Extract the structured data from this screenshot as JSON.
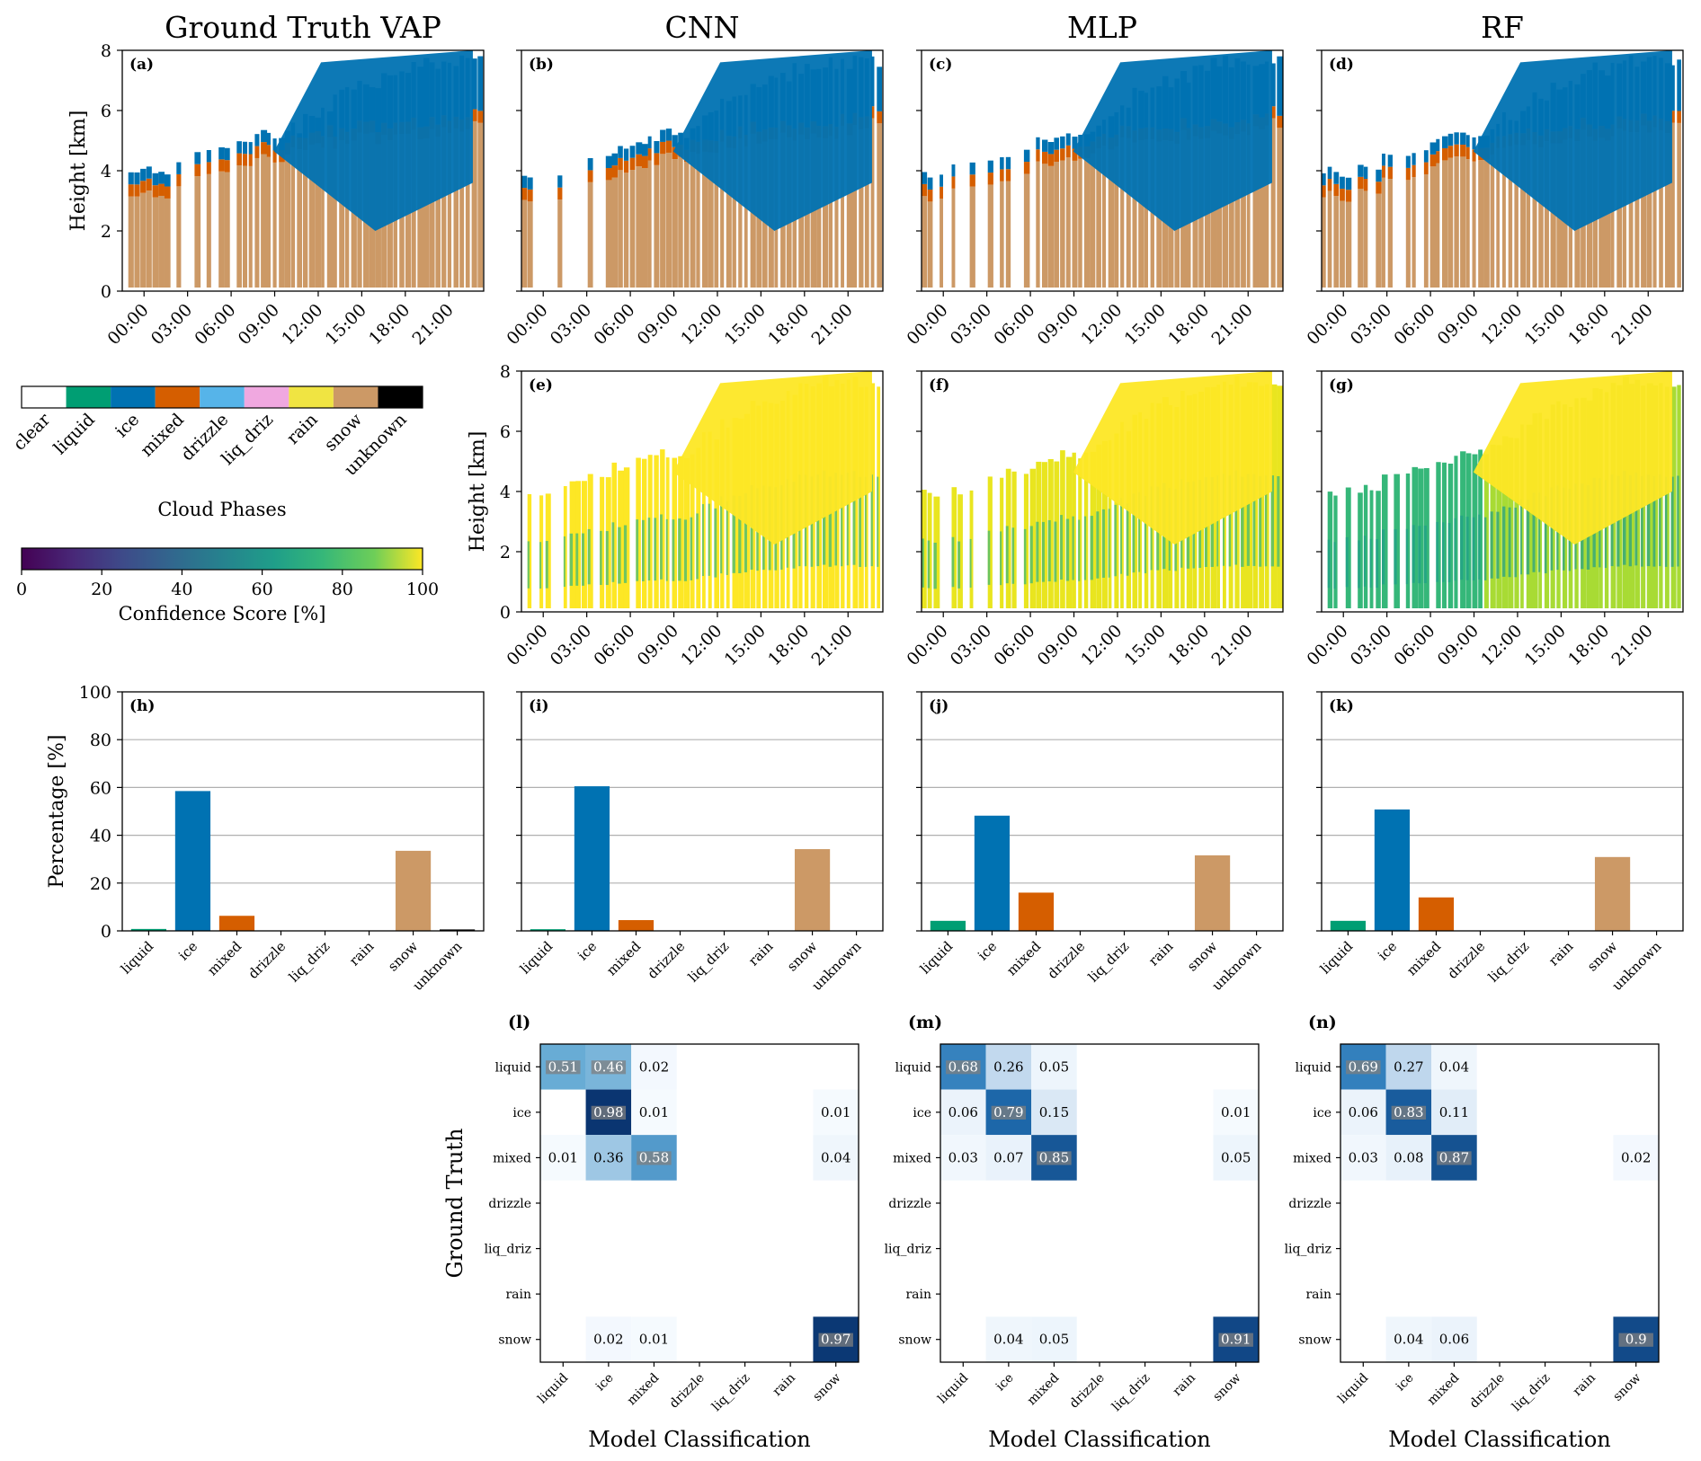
{
  "figure": {
    "time_ticks": [
      "00:00",
      "03:00",
      "06:00",
      "09:00",
      "12:00",
      "15:00",
      "18:00",
      "21:00"
    ],
    "height_ticks": [
      "0",
      "2",
      "4",
      "6",
      "8"
    ],
    "height_label": "Height [km]",
    "height_range_km": [
      0,
      8
    ]
  },
  "colors": {
    "clear": "#ffffff",
    "liquid": "#009e73",
    "ice": "#0072b2",
    "mixed": "#d55e00",
    "drizzle": "#56b4e9",
    "liq_driz": "#f0a8e0",
    "rain": "#f0e442",
    "snow": "#cc9966",
    "unknown": "#000000"
  },
  "legend": {
    "phase_title": "Cloud Phases",
    "phases": [
      "clear",
      "liquid",
      "ice",
      "mixed",
      "drizzle",
      "liq_driz",
      "rain",
      "snow",
      "unknown"
    ],
    "confidence_title": "Confidence Score [%]",
    "confidence_ticks": [
      "0",
      "20",
      "40",
      "60",
      "80",
      "100"
    ]
  },
  "columns": [
    {
      "title": "Ground Truth VAP"
    },
    {
      "title": "CNN"
    },
    {
      "title": "MLP"
    },
    {
      "title": "RF"
    }
  ],
  "panels": {
    "phase": [
      {
        "label": "(a)"
      },
      {
        "label": "(b)"
      },
      {
        "label": "(c)"
      },
      {
        "label": "(d)"
      }
    ],
    "confidence": [
      {
        "label": "(e)"
      },
      {
        "label": "(f)"
      },
      {
        "label": "(g)"
      }
    ]
  },
  "chart_data": [
    {
      "type": "bar",
      "label": "(h)",
      "model": "Ground Truth VAP",
      "ylabel": "Percentage [%]",
      "ylim": [
        0,
        100
      ],
      "yticks": [
        "0",
        "20",
        "40",
        "60",
        "80",
        "100"
      ],
      "grid": true,
      "categories": [
        "liquid",
        "ice",
        "mixed",
        "drizzle",
        "liq_driz",
        "rain",
        "snow",
        "unknown"
      ],
      "values": [
        0.8,
        58.5,
        6.3,
        0,
        0,
        0,
        33.5,
        0.6
      ]
    },
    {
      "type": "bar",
      "label": "(i)",
      "model": "CNN",
      "ylim": [
        0,
        100
      ],
      "grid": true,
      "categories": [
        "liquid",
        "ice",
        "mixed",
        "drizzle",
        "liq_driz",
        "rain",
        "snow",
        "unknown"
      ],
      "values": [
        0.7,
        60.5,
        4.5,
        0,
        0,
        0,
        34.2,
        0
      ]
    },
    {
      "type": "bar",
      "label": "(j)",
      "model": "MLP",
      "ylim": [
        0,
        100
      ],
      "grid": true,
      "categories": [
        "liquid",
        "ice",
        "mixed",
        "drizzle",
        "liq_driz",
        "rain",
        "snow",
        "unknown"
      ],
      "values": [
        4.2,
        48.2,
        16.0,
        0,
        0,
        0,
        31.6,
        0
      ]
    },
    {
      "type": "bar",
      "label": "(k)",
      "model": "RF",
      "ylim": [
        0,
        100
      ],
      "grid": true,
      "categories": [
        "liquid",
        "ice",
        "mixed",
        "drizzle",
        "liq_driz",
        "rain",
        "snow",
        "unknown"
      ],
      "values": [
        4.2,
        50.8,
        14.0,
        0,
        0,
        0,
        30.9,
        0
      ]
    },
    {
      "type": "heatmap",
      "label": "(l)",
      "model": "CNN",
      "ylabel": "Ground Truth",
      "xlabel": "Model Classification",
      "rows": [
        "liquid",
        "ice",
        "mixed",
        "drizzle",
        "liq_driz",
        "rain",
        "snow"
      ],
      "cols": [
        "liquid",
        "ice",
        "mixed",
        "drizzle",
        "liq_driz",
        "rain",
        "snow"
      ],
      "values": [
        [
          0.51,
          0.46,
          0.02,
          null,
          null,
          null,
          null
        ],
        [
          null,
          0.98,
          0.01,
          null,
          null,
          null,
          0.01
        ],
        [
          0.01,
          0.36,
          0.58,
          null,
          null,
          null,
          0.04
        ],
        [
          null,
          null,
          null,
          null,
          null,
          null,
          null
        ],
        [
          null,
          null,
          null,
          null,
          null,
          null,
          null
        ],
        [
          null,
          null,
          null,
          null,
          null,
          null,
          null
        ],
        [
          null,
          0.02,
          0.01,
          null,
          null,
          null,
          0.97
        ]
      ]
    },
    {
      "type": "heatmap",
      "label": "(m)",
      "model": "MLP",
      "xlabel": "Model Classification",
      "rows": [
        "liquid",
        "ice",
        "mixed",
        "drizzle",
        "liq_driz",
        "rain",
        "snow"
      ],
      "cols": [
        "liquid",
        "ice",
        "mixed",
        "drizzle",
        "liq_driz",
        "rain",
        "snow"
      ],
      "values": [
        [
          0.68,
          0.26,
          0.05,
          null,
          null,
          null,
          null
        ],
        [
          0.06,
          0.79,
          0.15,
          null,
          null,
          null,
          0.01
        ],
        [
          0.03,
          0.07,
          0.85,
          null,
          null,
          null,
          0.05
        ],
        [
          null,
          null,
          null,
          null,
          null,
          null,
          null
        ],
        [
          null,
          null,
          null,
          null,
          null,
          null,
          null
        ],
        [
          null,
          null,
          null,
          null,
          null,
          null,
          null
        ],
        [
          null,
          0.04,
          0.05,
          null,
          null,
          null,
          0.91
        ]
      ]
    },
    {
      "type": "heatmap",
      "label": "(n)",
      "model": "RF",
      "xlabel": "Model Classification",
      "rows": [
        "liquid",
        "ice",
        "mixed",
        "drizzle",
        "liq_driz",
        "rain",
        "snow"
      ],
      "cols": [
        "liquid",
        "ice",
        "mixed",
        "drizzle",
        "liq_driz",
        "rain",
        "snow"
      ],
      "values": [
        [
          0.69,
          0.27,
          0.04,
          null,
          null,
          null,
          null
        ],
        [
          0.06,
          0.83,
          0.11,
          null,
          null,
          null,
          null
        ],
        [
          0.03,
          0.08,
          0.87,
          null,
          null,
          null,
          0.02
        ],
        [
          null,
          null,
          null,
          null,
          null,
          null,
          null
        ],
        [
          null,
          null,
          null,
          null,
          null,
          null,
          null
        ],
        [
          null,
          null,
          null,
          null,
          null,
          null,
          null
        ],
        [
          null,
          0.04,
          0.06,
          null,
          null,
          null,
          0.9
        ]
      ]
    }
  ]
}
